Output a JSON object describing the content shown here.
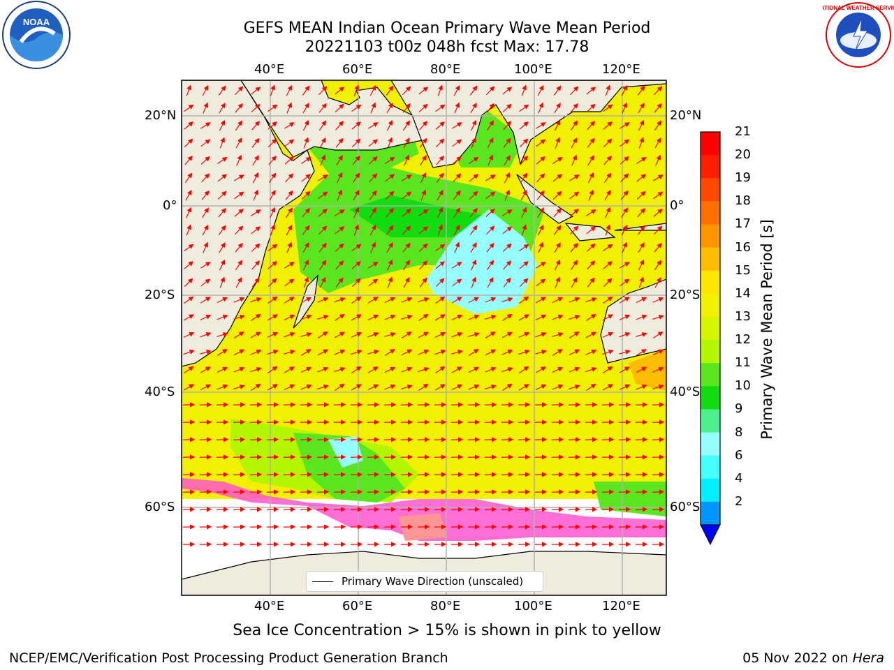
{
  "header": {
    "title_line1": "GEFS MEAN Indian Ocean Primary Wave Mean Period",
    "title_line2": "20221103 t00z 048h fcst   Max: 17.78"
  },
  "logos": {
    "left": "NOAA",
    "right": "NATIONAL WEATHER SERVICE"
  },
  "axes": {
    "lon_ticks": [
      "40°E",
      "60°E",
      "80°E",
      "100°E",
      "120°E"
    ],
    "lat_ticks": [
      "20°N",
      "0°",
      "20°S",
      "40°S",
      "60°S"
    ],
    "lon_range": [
      20,
      130
    ],
    "lat_range": [
      -74,
      27
    ]
  },
  "colorbar": {
    "label": "Primary Wave Mean Period [s]",
    "ticks": [
      "21",
      "20",
      "19",
      "18",
      "17",
      "16",
      "15",
      "14",
      "13",
      "12",
      "11",
      "10",
      "9",
      "8",
      "6",
      "4",
      "2"
    ],
    "colors": [
      "#ff0000",
      "#ff2000",
      "#ff4a00",
      "#ff7000",
      "#ff9600",
      "#ffbc00",
      "#ffe600",
      "#f0f000",
      "#d8f500",
      "#b4f500",
      "#5ae61e",
      "#10dc10",
      "#4cf08c",
      "#96ffff",
      "#46ffff",
      "#00f0ff",
      "#0096ff"
    ],
    "extend_color": "#0000ff"
  },
  "legend": {
    "label": "Primary Wave Direction (unscaled)"
  },
  "annotation": "Sea Ice Concentration > 15% is shown in pink to yellow",
  "footer": {
    "left": "NCEP/EMC/Verification Post Processing Product Generation Branch",
    "right_date": "05 Nov 2022 on ",
    "right_host": "Hera"
  }
}
